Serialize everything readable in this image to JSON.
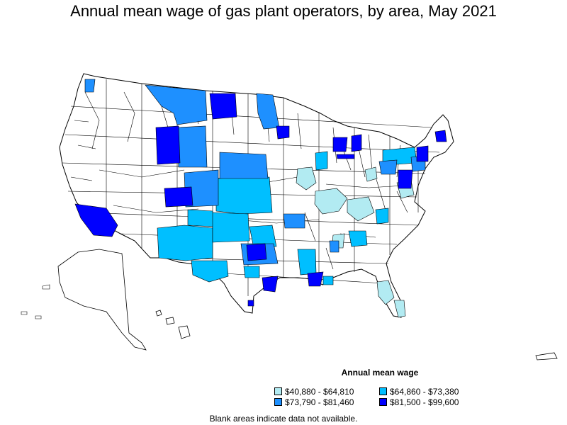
{
  "title": "Annual mean wage of gas plant operators, by area, May 2021",
  "legend": {
    "title": "Annual mean wage",
    "items": [
      {
        "label": "$40,880 - $64,810",
        "color": "#b2ebf2"
      },
      {
        "label": "$64,860 - $73,380",
        "color": "#00bfff"
      },
      {
        "label": "$73,790 - $81,460",
        "color": "#1e90ff"
      },
      {
        "label": "$81,500 - $99,600",
        "color": "#0000ff"
      }
    ]
  },
  "footnote": "Blank areas indicate data not available.",
  "colors": {
    "no_data": "#ffffff",
    "border": "#000000"
  }
}
